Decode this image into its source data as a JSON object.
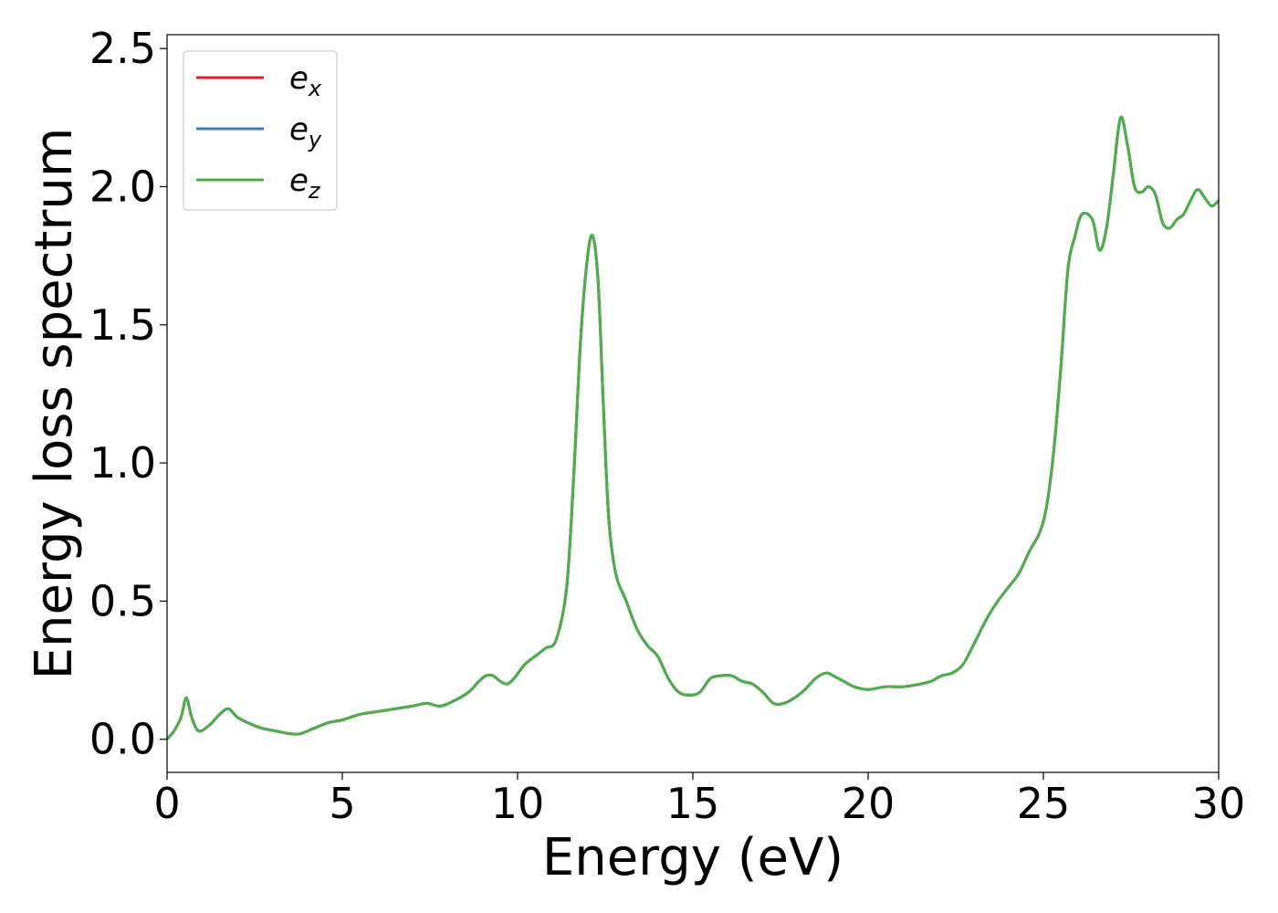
{
  "chart_data": {
    "type": "line",
    "title": "",
    "xlabel": "Energy (eV)",
    "ylabel": "Energy loss spectrum",
    "xlim": [
      0,
      30
    ],
    "ylim": [
      -0.12,
      2.55
    ],
    "x_ticks": [
      0,
      5,
      10,
      15,
      20,
      25,
      30
    ],
    "x_tick_labels": [
      "0",
      "5",
      "10",
      "15",
      "20",
      "25",
      "30"
    ],
    "y_ticks": [
      0.0,
      0.5,
      1.0,
      1.5,
      2.0,
      2.5
    ],
    "y_tick_labels": [
      "0.0",
      "0.5",
      "1.0",
      "1.5",
      "2.0",
      "2.5"
    ],
    "grid": false,
    "legend": {
      "placement": "top-left",
      "entries": [
        {
          "base": "e",
          "sub": "x",
          "color": "#e41a1c"
        },
        {
          "base": "e",
          "sub": "y",
          "color": "#377eb8"
        },
        {
          "base": "e",
          "sub": "z",
          "color": "#4daf4a"
        }
      ]
    },
    "x": [
      0,
      0.2,
      0.4,
      0.55,
      0.7,
      0.9,
      1.2,
      1.5,
      1.75,
      2.0,
      2.3,
      2.7,
      3.1,
      3.5,
      3.8,
      4.2,
      4.6,
      5.0,
      5.5,
      6.0,
      6.5,
      7.0,
      7.4,
      7.8,
      8.2,
      8.6,
      8.9,
      9.1,
      9.3,
      9.5,
      9.7,
      9.9,
      10.2,
      10.5,
      10.8,
      11.1,
      11.4,
      11.6,
      11.8,
      12.0,
      12.15,
      12.3,
      12.45,
      12.6,
      12.8,
      13.1,
      13.4,
      13.7,
      14.0,
      14.3,
      14.6,
      14.9,
      15.2,
      15.5,
      15.8,
      16.1,
      16.4,
      16.7,
      17.0,
      17.3,
      17.6,
      17.9,
      18.2,
      18.5,
      18.8,
      19.0,
      19.3,
      19.6,
      20.0,
      20.5,
      21.0,
      21.5,
      21.8,
      22.1,
      22.4,
      22.7,
      23.0,
      23.4,
      23.7,
      24.0,
      24.3,
      24.6,
      24.9,
      25.1,
      25.3,
      25.5,
      25.7,
      25.9,
      26.1,
      26.4,
      26.6,
      26.8,
      27.0,
      27.2,
      27.4,
      27.6,
      27.8,
      28.0,
      28.2,
      28.4,
      28.6,
      28.8,
      29.0,
      29.2,
      29.4,
      29.6,
      29.8,
      30.0
    ],
    "series": [
      {
        "name": "e_x",
        "color": "#e41a1c",
        "values": [
          0.0,
          0.03,
          0.08,
          0.15,
          0.08,
          0.03,
          0.05,
          0.09,
          0.11,
          0.08,
          0.06,
          0.04,
          0.03,
          0.02,
          0.02,
          0.04,
          0.06,
          0.07,
          0.09,
          0.1,
          0.11,
          0.12,
          0.13,
          0.12,
          0.14,
          0.17,
          0.21,
          0.23,
          0.23,
          0.21,
          0.2,
          0.22,
          0.27,
          0.3,
          0.33,
          0.36,
          0.55,
          0.95,
          1.45,
          1.75,
          1.82,
          1.65,
          1.2,
          0.8,
          0.6,
          0.5,
          0.4,
          0.34,
          0.3,
          0.22,
          0.17,
          0.16,
          0.17,
          0.22,
          0.23,
          0.23,
          0.21,
          0.2,
          0.17,
          0.13,
          0.13,
          0.15,
          0.18,
          0.22,
          0.24,
          0.23,
          0.21,
          0.19,
          0.18,
          0.19,
          0.19,
          0.2,
          0.21,
          0.23,
          0.24,
          0.27,
          0.34,
          0.44,
          0.5,
          0.55,
          0.6,
          0.68,
          0.75,
          0.85,
          1.05,
          1.35,
          1.7,
          1.82,
          1.9,
          1.88,
          1.77,
          1.85,
          2.05,
          2.25,
          2.15,
          2.0,
          1.98,
          2.0,
          1.97,
          1.87,
          1.85,
          1.88,
          1.9,
          1.95,
          1.99,
          1.96,
          1.93,
          1.95
        ]
      },
      {
        "name": "e_y",
        "color": "#377eb8",
        "values": [
          0.0,
          0.03,
          0.08,
          0.15,
          0.08,
          0.03,
          0.05,
          0.09,
          0.11,
          0.08,
          0.06,
          0.04,
          0.03,
          0.02,
          0.02,
          0.04,
          0.06,
          0.07,
          0.09,
          0.1,
          0.11,
          0.12,
          0.13,
          0.12,
          0.14,
          0.17,
          0.21,
          0.23,
          0.23,
          0.21,
          0.2,
          0.22,
          0.27,
          0.3,
          0.33,
          0.36,
          0.55,
          0.95,
          1.45,
          1.75,
          1.82,
          1.65,
          1.2,
          0.8,
          0.6,
          0.5,
          0.4,
          0.34,
          0.3,
          0.22,
          0.17,
          0.16,
          0.17,
          0.22,
          0.23,
          0.23,
          0.21,
          0.2,
          0.17,
          0.13,
          0.13,
          0.15,
          0.18,
          0.22,
          0.24,
          0.23,
          0.21,
          0.19,
          0.18,
          0.19,
          0.19,
          0.2,
          0.21,
          0.23,
          0.24,
          0.27,
          0.34,
          0.44,
          0.5,
          0.55,
          0.6,
          0.68,
          0.75,
          0.85,
          1.05,
          1.35,
          1.7,
          1.82,
          1.9,
          1.88,
          1.77,
          1.85,
          2.05,
          2.25,
          2.15,
          2.0,
          1.98,
          2.0,
          1.97,
          1.87,
          1.85,
          1.88,
          1.9,
          1.95,
          1.99,
          1.96,
          1.93,
          1.95
        ]
      },
      {
        "name": "e_z",
        "color": "#4daf4a",
        "values": [
          0.0,
          0.03,
          0.08,
          0.15,
          0.08,
          0.03,
          0.05,
          0.09,
          0.11,
          0.08,
          0.06,
          0.04,
          0.03,
          0.02,
          0.02,
          0.04,
          0.06,
          0.07,
          0.09,
          0.1,
          0.11,
          0.12,
          0.13,
          0.12,
          0.14,
          0.17,
          0.21,
          0.23,
          0.23,
          0.21,
          0.2,
          0.22,
          0.27,
          0.3,
          0.33,
          0.36,
          0.55,
          0.95,
          1.45,
          1.75,
          1.82,
          1.65,
          1.2,
          0.8,
          0.6,
          0.5,
          0.4,
          0.34,
          0.3,
          0.22,
          0.17,
          0.16,
          0.17,
          0.22,
          0.23,
          0.23,
          0.21,
          0.2,
          0.17,
          0.13,
          0.13,
          0.15,
          0.18,
          0.22,
          0.24,
          0.23,
          0.21,
          0.19,
          0.18,
          0.19,
          0.19,
          0.2,
          0.21,
          0.23,
          0.24,
          0.27,
          0.34,
          0.44,
          0.5,
          0.55,
          0.6,
          0.68,
          0.75,
          0.85,
          1.05,
          1.35,
          1.7,
          1.82,
          1.9,
          1.88,
          1.77,
          1.85,
          2.05,
          2.25,
          2.15,
          2.0,
          1.98,
          2.0,
          1.97,
          1.87,
          1.85,
          1.88,
          1.9,
          1.95,
          1.99,
          1.96,
          1.93,
          1.95
        ]
      }
    ]
  }
}
